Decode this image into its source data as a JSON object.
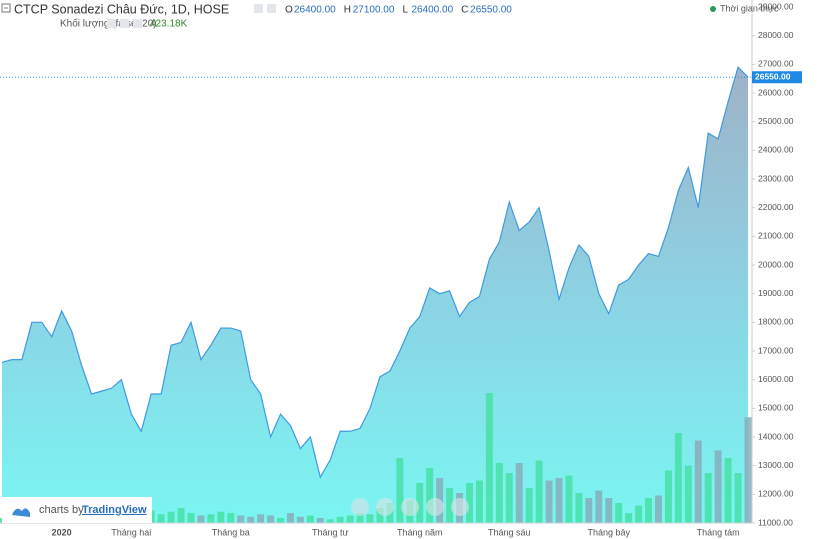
{
  "chart_data": {
    "type": "area",
    "title": "CTCP Sonadezi Châu Đức, 1D, HOSE",
    "status": "Thời gian thực",
    "ohlc": {
      "labels": [
        "O",
        "H",
        "L",
        "C"
      ],
      "values": [
        26400,
        27100,
        26400,
        26550
      ],
      "value_labels": [
        "26400.00",
        "27100.00",
        "26400.00",
        "26550.00"
      ]
    },
    "categories": [
      null,
      null,
      null,
      null,
      null,
      null,
      "2020",
      null,
      null,
      null,
      null,
      null,
      null,
      "Tháng hai",
      null,
      null,
      null,
      null,
      null,
      null,
      null,
      null,
      null,
      "Tháng ba",
      null,
      null,
      null,
      null,
      null,
      null,
      null,
      null,
      null,
      "Tháng tư",
      null,
      null,
      null,
      null,
      null,
      null,
      null,
      null,
      "Tháng năm",
      null,
      null,
      null,
      null,
      null,
      null,
      null,
      null,
      "Tháng sáu",
      null,
      null,
      null,
      null,
      null,
      null,
      null,
      null,
      null,
      "Tháng bảy",
      null,
      null,
      null,
      null,
      null,
      null,
      null,
      null,
      null,
      null,
      "Tháng tám",
      null,
      null,
      null
    ],
    "values": [
      16600,
      16700,
      16700,
      18000,
      18000,
      17500,
      18400,
      17700,
      16500,
      15500,
      15600,
      15700,
      16000,
      14800,
      14200,
      15500,
      15500,
      17200,
      17300,
      18000,
      16700,
      17200,
      17800,
      17800,
      17700,
      16000,
      15500,
      14000,
      14800,
      14400,
      13600,
      14000,
      12600,
      13200,
      14200,
      14200,
      14300,
      15000,
      16100,
      16300,
      17000,
      17800,
      18200,
      19200,
      19000,
      19100,
      18200,
      18700,
      18900,
      20200,
      20800,
      22200,
      21200,
      21500,
      22000,
      20500,
      18800,
      19900,
      20700,
      20300,
      19000,
      18300,
      19300,
      19500,
      20000,
      20400,
      20300,
      21300,
      22600,
      23400,
      22000,
      24600,
      24400,
      25700,
      26900,
      26550
    ],
    "color": "#3d9be0",
    "volume": {
      "name": "Khối lượng (false, 20)",
      "up_color": "#47e0a6",
      "down_color": "#86aebb",
      "values": [
        20000,
        15000,
        30000,
        25000,
        20000,
        15000,
        30000,
        40000,
        25000,
        20000,
        35000,
        30000,
        25000,
        20000,
        40000,
        50000,
        35000,
        45000,
        60000,
        40000,
        30000,
        35000,
        45000,
        40000,
        30000,
        25000,
        35000,
        30000,
        20000,
        40000,
        25000,
        30000,
        20000,
        15000,
        25000,
        30000,
        40000,
        35000,
        60000,
        80000,
        260000,
        90000,
        160000,
        220000,
        180000,
        140000,
        120000,
        160000,
        170000,
        520000,
        240000,
        200000,
        240000,
        140000,
        250000,
        170000,
        180000,
        190000,
        120000,
        100000,
        130000,
        100000,
        80000,
        40000,
        70000,
        100000,
        110000,
        210000,
        360000,
        230000,
        330000,
        200000,
        290000,
        260000,
        200000,
        423180
      ],
      "value_labels": [
        null,
        null,
        null,
        null,
        null,
        null,
        null,
        null,
        null,
        null,
        null,
        null,
        null,
        null,
        null,
        null,
        null,
        null,
        null,
        null,
        null,
        null,
        null,
        null,
        null,
        null,
        null,
        null,
        null,
        null,
        null,
        null,
        null,
        null,
        null,
        null,
        null,
        null,
        null,
        null,
        null,
        null,
        null,
        null,
        null,
        null,
        null,
        null,
        null,
        null,
        null,
        null,
        null,
        null,
        null,
        null,
        null,
        null,
        null,
        null,
        null,
        null,
        null,
        null,
        null,
        null,
        null,
        null,
        null,
        null,
        null,
        null,
        null,
        null,
        null,
        "423.18K"
      ]
    },
    "ylim": [
      11000,
      29000
    ],
    "yticks": [
      {
        "value": 11000,
        "label": "11000.00"
      },
      {
        "value": 12000,
        "label": "12000.00"
      },
      {
        "value": 13000,
        "label": "13000.00"
      },
      {
        "value": 14000,
        "label": "14000.00"
      },
      {
        "value": 15000,
        "label": "15000.00"
      },
      {
        "value": 16000,
        "label": "16000.00"
      },
      {
        "value": 17000,
        "label": "17000.00"
      },
      {
        "value": 18000,
        "label": "18000.00"
      },
      {
        "value": 19000,
        "label": "19000.00"
      },
      {
        "value": 20000,
        "label": "20000.00"
      },
      {
        "value": 21000,
        "label": "21000.00"
      },
      {
        "value": 22000,
        "label": "22000.00"
      },
      {
        "value": 23000,
        "label": "23000.00"
      },
      {
        "value": 24000,
        "label": "24000.00"
      },
      {
        "value": 25000,
        "label": "25000.00"
      },
      {
        "value": 26000,
        "label": "26000.00"
      },
      {
        "value": 27000,
        "label": "27000.00"
      },
      {
        "value": 28000,
        "label": "28000.00"
      },
      {
        "value": 29000,
        "label": "29000.00"
      }
    ],
    "grid": false
  },
  "branding": {
    "prefix": "charts by",
    "name": "TradingView"
  }
}
